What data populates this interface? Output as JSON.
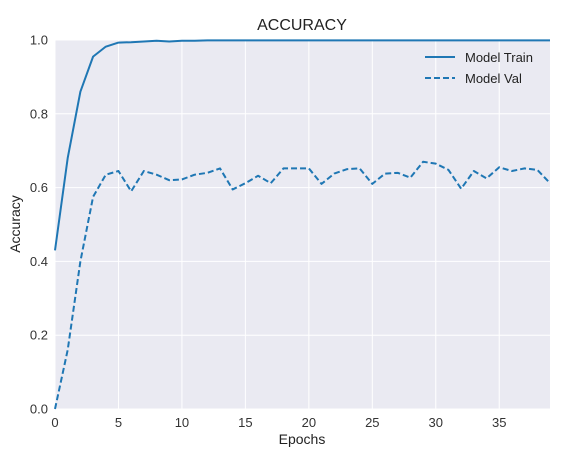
{
  "chart_data": {
    "type": "line",
    "title": "ACCURACY",
    "xlabel": "Epochs",
    "ylabel": "Accuracy",
    "xlim": [
      0,
      39
    ],
    "ylim": [
      0,
      1.0
    ],
    "xticks": [
      0,
      5,
      10,
      15,
      20,
      25,
      30,
      35
    ],
    "yticks": [
      0.0,
      0.2,
      0.4,
      0.6,
      0.8,
      1.0
    ],
    "xtick_labels": [
      "0",
      "5",
      "10",
      "15",
      "20",
      "25",
      "30",
      "35"
    ],
    "ytick_labels": [
      "0.0",
      "0.2",
      "0.4",
      "0.6",
      "0.8",
      "1.0"
    ],
    "grid": true,
    "legend_position": "top-right",
    "background_color": "#eaeaf2",
    "series": [
      {
        "name": "Model Train",
        "style": "solid",
        "color": "#1f77b4",
        "x": [
          0,
          1,
          2,
          3,
          4,
          5,
          6,
          7,
          8,
          9,
          10,
          11,
          12,
          13,
          14,
          15,
          16,
          17,
          18,
          19,
          20,
          21,
          22,
          23,
          24,
          25,
          26,
          27,
          28,
          29,
          30,
          31,
          32,
          33,
          34,
          35,
          36,
          37,
          38,
          39
        ],
        "values": [
          0.43,
          0.68,
          0.86,
          0.955,
          0.982,
          0.993,
          0.994,
          0.996,
          0.998,
          0.996,
          0.998,
          0.998,
          0.999,
          0.999,
          0.999,
          0.999,
          0.999,
          0.999,
          0.999,
          0.999,
          0.999,
          0.999,
          0.999,
          0.999,
          0.999,
          0.999,
          0.999,
          0.999,
          0.999,
          0.999,
          0.999,
          0.999,
          0.999,
          0.999,
          0.999,
          0.999,
          0.999,
          0.999,
          0.999,
          0.999
        ]
      },
      {
        "name": "Model Val",
        "style": "dashed",
        "color": "#1f77b4",
        "x": [
          0,
          1,
          2,
          3,
          4,
          5,
          6,
          7,
          8,
          9,
          10,
          11,
          12,
          13,
          14,
          15,
          16,
          17,
          18,
          19,
          20,
          21,
          22,
          23,
          24,
          25,
          26,
          27,
          28,
          29,
          30,
          31,
          32,
          33,
          34,
          35,
          36,
          37,
          38,
          39
        ],
        "values": [
          0.0,
          0.16,
          0.4,
          0.575,
          0.635,
          0.645,
          0.59,
          0.645,
          0.635,
          0.62,
          0.622,
          0.635,
          0.64,
          0.652,
          0.595,
          0.612,
          0.632,
          0.612,
          0.652,
          0.652,
          0.652,
          0.61,
          0.638,
          0.65,
          0.652,
          0.61,
          0.638,
          0.64,
          0.627,
          0.67,
          0.665,
          0.648,
          0.597,
          0.645,
          0.625,
          0.655,
          0.645,
          0.652,
          0.648,
          0.612
        ]
      }
    ]
  }
}
